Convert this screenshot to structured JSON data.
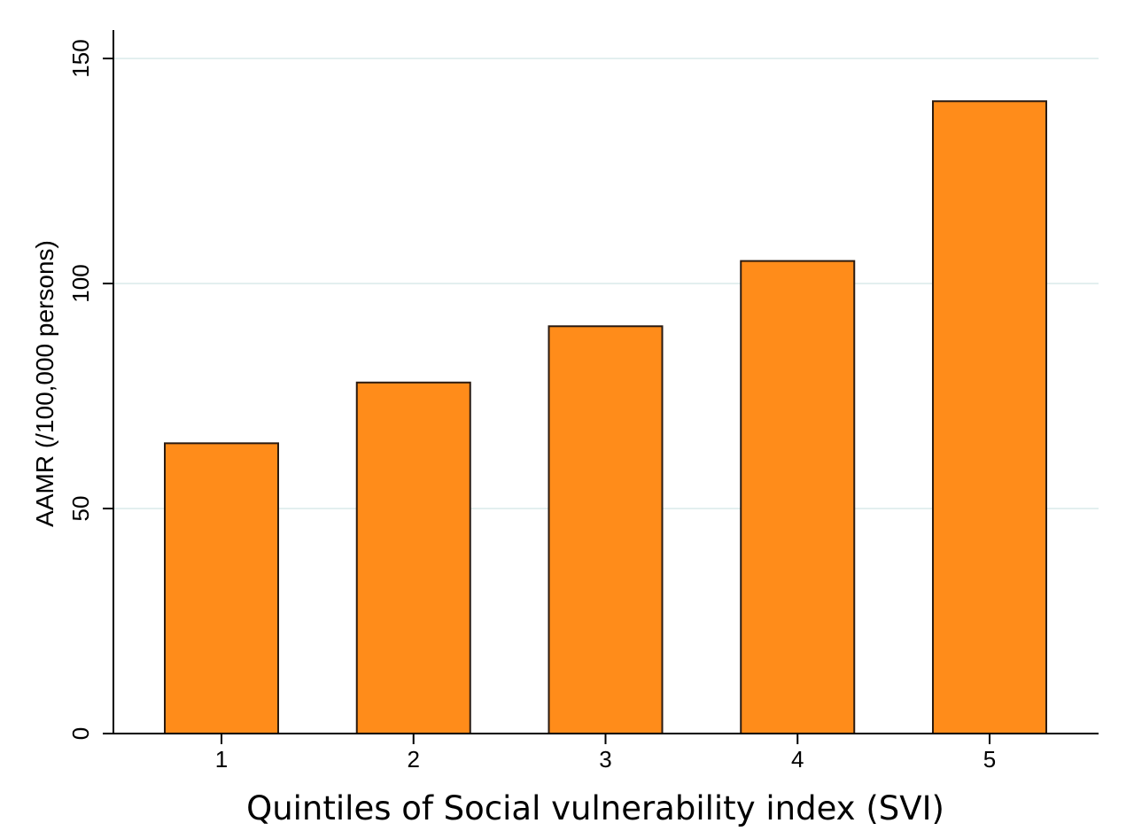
{
  "chart_data": {
    "type": "bar",
    "title": "",
    "xlabel": "Quintiles of Social vulnerability index (SVI)",
    "ylabel": "AAMR (/100,000 persons)",
    "categories": [
      "1",
      "2",
      "3",
      "4",
      "5"
    ],
    "values": [
      64.5,
      78,
      90.5,
      105,
      140.5
    ],
    "ylim": [
      0,
      150
    ],
    "yticks": [
      0,
      50,
      100,
      150
    ],
    "grid": true,
    "legend": "none",
    "colors": {
      "bar": "#ff8c1a",
      "bar_edge": "#2a1a10",
      "grid": "#e3efef",
      "axis": "#000000"
    }
  }
}
